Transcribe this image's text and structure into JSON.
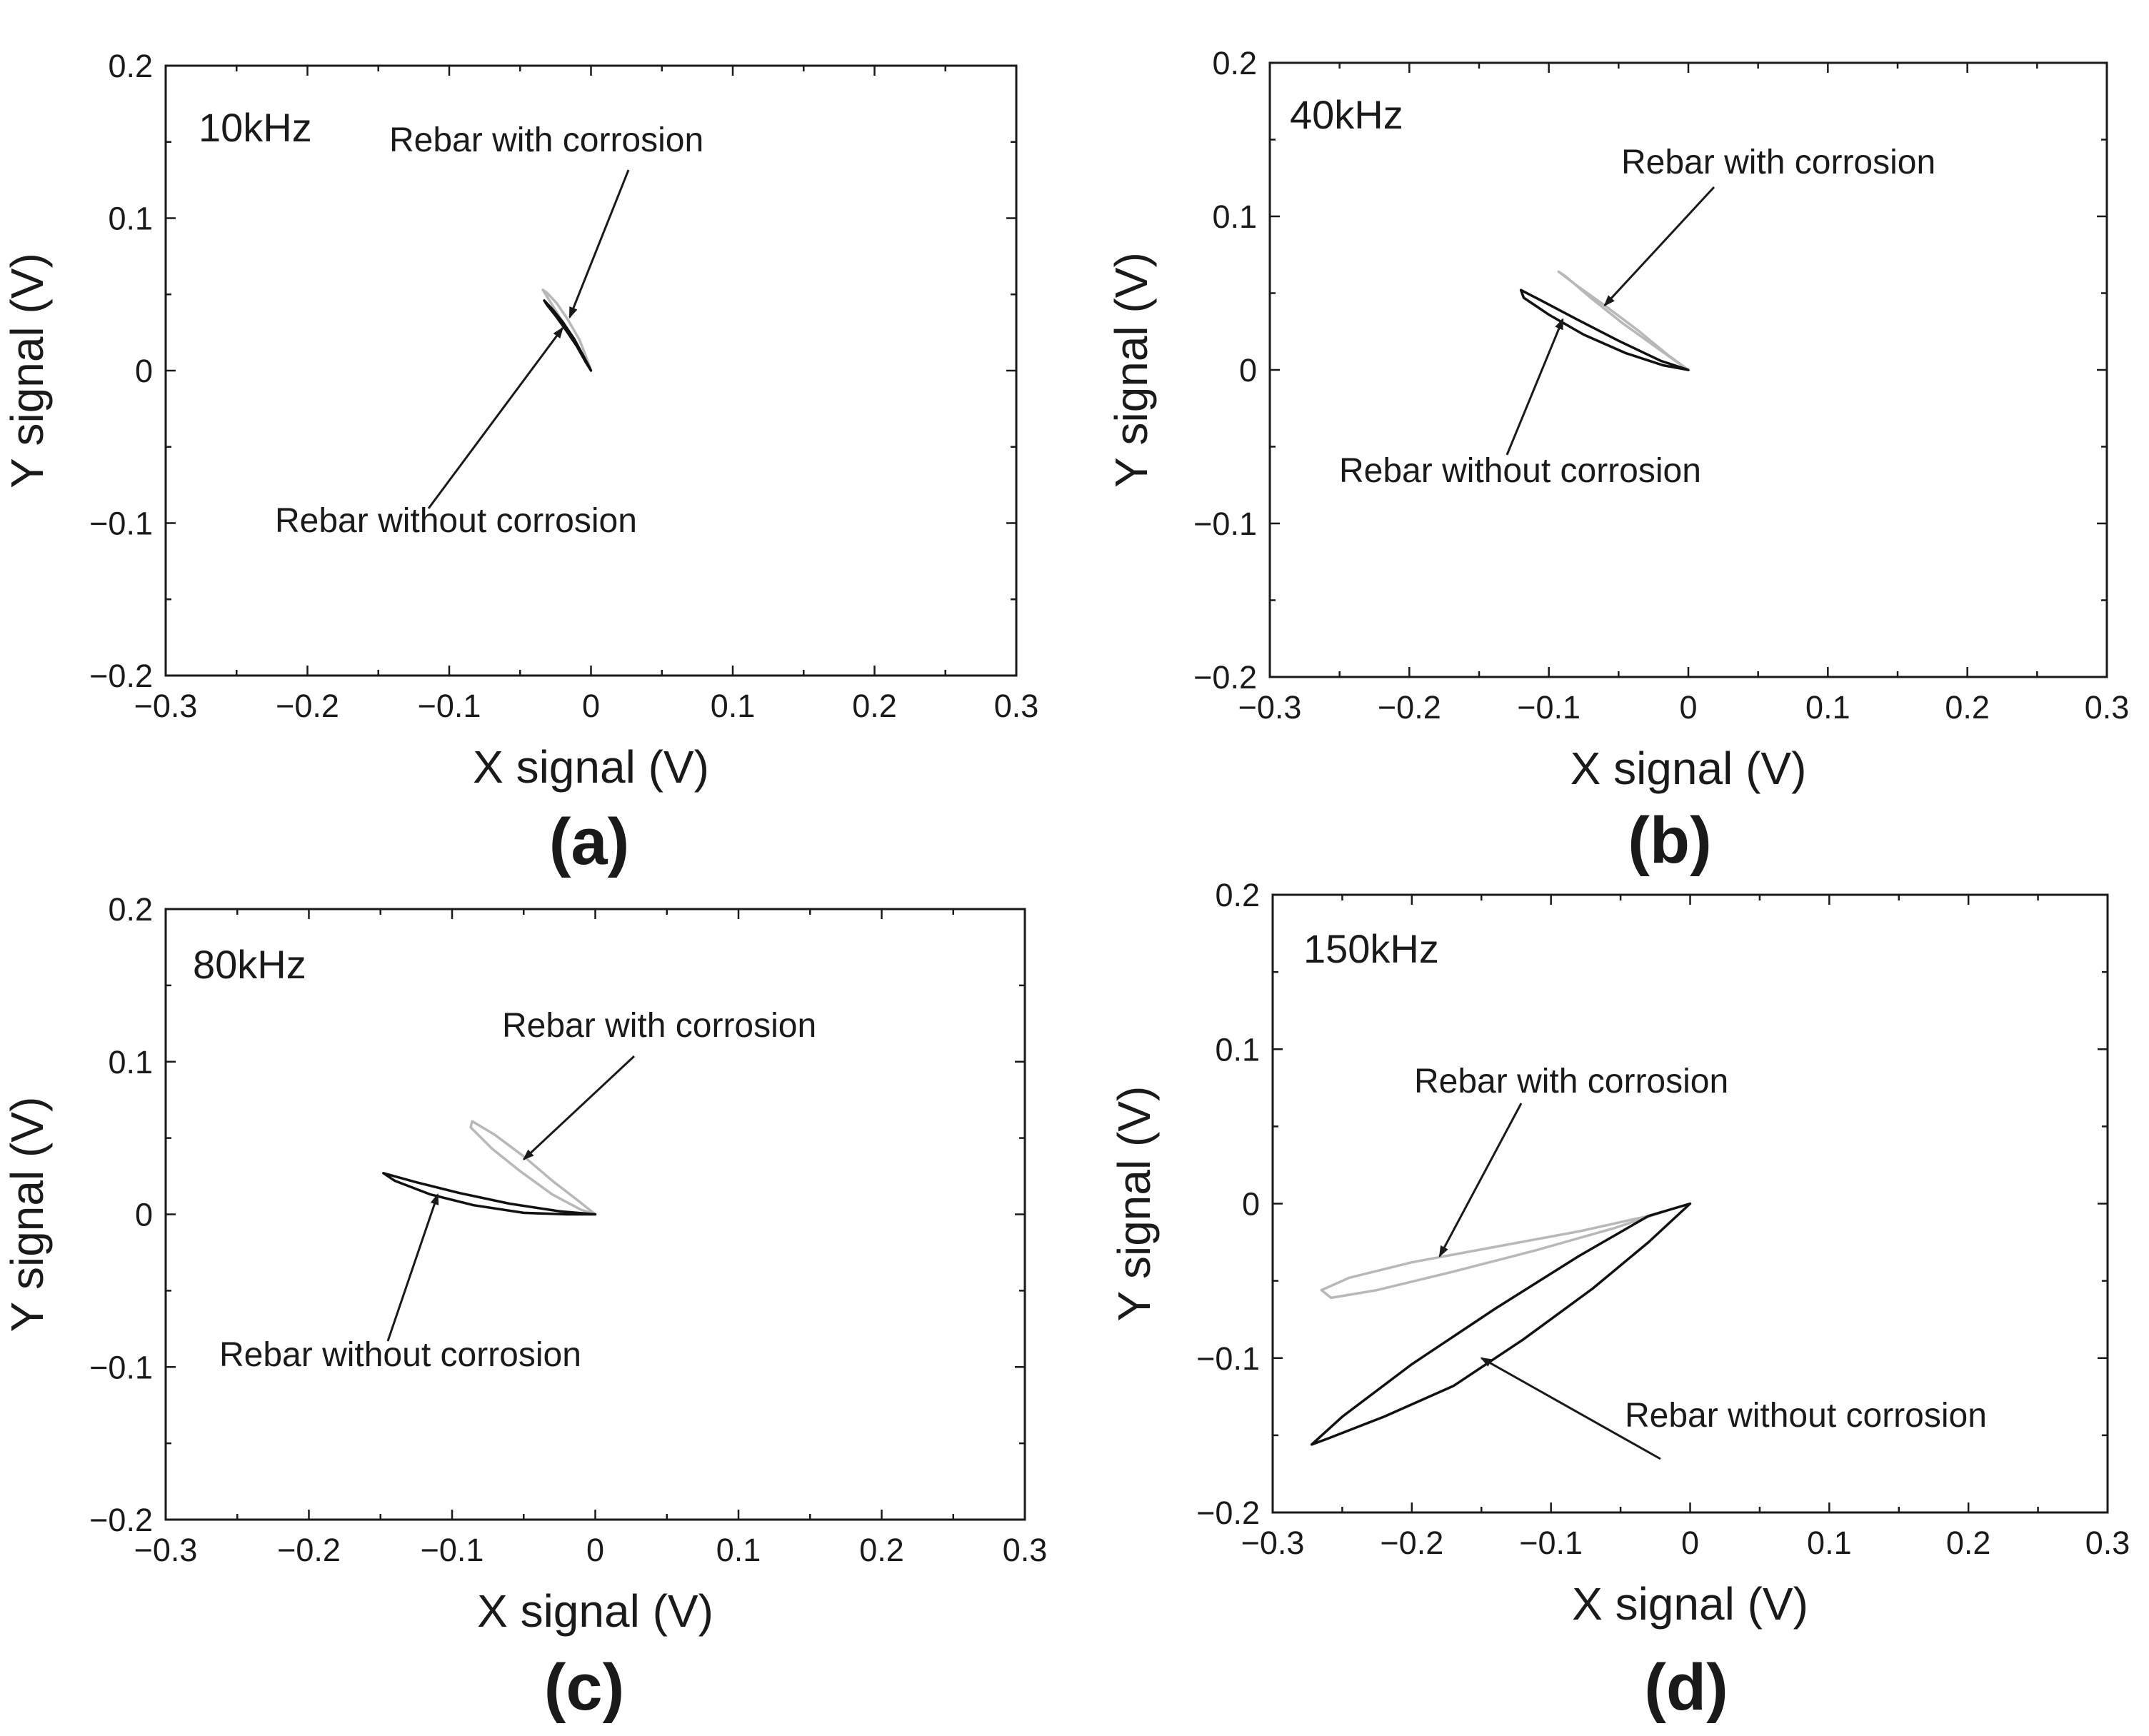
{
  "series_colors": {
    "Rebar with corrosion": "#b8b8b8",
    "Rebar without corrosion": "#111111"
  },
  "chart_data": [
    {
      "type": "line",
      "panel_letter": "(a)",
      "frequency_label": "10kHz",
      "xlabel": "X signal (V)",
      "ylabel": "Y signal (V)",
      "xlim": [
        -0.3,
        0.3
      ],
      "ylim": [
        -0.2,
        0.2
      ],
      "xticks": [
        "−0.3",
        "−0.2",
        "−0.1",
        "0",
        "0.1",
        "0.2",
        "0.3"
      ],
      "yticks": [
        "0.2",
        "0.1",
        "0",
        "−0.1",
        "−0.2"
      ],
      "grid": false,
      "series": [
        {
          "name": "Rebar with corrosion",
          "points": [
            [
              0,
              0
            ],
            [
              -0.003,
              0.008
            ],
            [
              -0.008,
              0.02
            ],
            [
              -0.016,
              0.033
            ],
            [
              -0.024,
              0.044
            ],
            [
              -0.031,
              0.051
            ],
            [
              -0.034,
              0.053
            ],
            [
              -0.03,
              0.047
            ],
            [
              -0.022,
              0.035
            ],
            [
              -0.013,
              0.022
            ],
            [
              -0.006,
              0.01
            ],
            [
              -0.002,
              0.003
            ],
            [
              0,
              0
            ]
          ]
        },
        {
          "name": "Rebar without corrosion",
          "points": [
            [
              0,
              0
            ],
            [
              -0.004,
              0.006
            ],
            [
              -0.01,
              0.016
            ],
            [
              -0.018,
              0.027
            ],
            [
              -0.025,
              0.036
            ],
            [
              -0.031,
              0.043
            ],
            [
              -0.033,
              0.046
            ],
            [
              -0.027,
              0.04
            ],
            [
              -0.02,
              0.032
            ],
            [
              -0.012,
              0.021
            ],
            [
              -0.005,
              0.009
            ],
            [
              -0.001,
              0.002
            ],
            [
              0,
              0
            ]
          ]
        }
      ],
      "annotations": [
        {
          "text": "Rebar with corrosion",
          "target": [
            -0.015,
            0.035
          ]
        },
        {
          "text": "Rebar without corrosion",
          "target": [
            -0.02,
            0.028
          ]
        }
      ]
    },
    {
      "type": "line",
      "panel_letter": "(b)",
      "frequency_label": "40kHz",
      "xlabel": "X signal (V)",
      "ylabel": "Y signal (V)",
      "xlim": [
        -0.3,
        0.3
      ],
      "ylim": [
        -0.2,
        0.2
      ],
      "xticks": [
        "−0.3",
        "−0.2",
        "−0.1",
        "0",
        "0.1",
        "0.2",
        "0.3"
      ],
      "yticks": [
        "0.2",
        "0.1",
        "0",
        "−0.1",
        "−0.2"
      ],
      "grid": false,
      "series": [
        {
          "name": "Rebar with corrosion",
          "points": [
            [
              0,
              0
            ],
            [
              -0.015,
              0.01
            ],
            [
              -0.035,
              0.025
            ],
            [
              -0.06,
              0.042
            ],
            [
              -0.08,
              0.055
            ],
            [
              -0.093,
              0.064
            ],
            [
              -0.088,
              0.061
            ],
            [
              -0.07,
              0.047
            ],
            [
              -0.048,
              0.031
            ],
            [
              -0.025,
              0.016
            ],
            [
              -0.008,
              0.005
            ],
            [
              0,
              0
            ]
          ]
        },
        {
          "name": "Rebar without corrosion",
          "points": [
            [
              0,
              0
            ],
            [
              -0.02,
              0.006
            ],
            [
              -0.05,
              0.019
            ],
            [
              -0.08,
              0.033
            ],
            [
              -0.105,
              0.045
            ],
            [
              -0.12,
              0.052
            ],
            [
              -0.118,
              0.047
            ],
            [
              -0.1,
              0.036
            ],
            [
              -0.075,
              0.023
            ],
            [
              -0.045,
              0.011
            ],
            [
              -0.018,
              0.003
            ],
            [
              0,
              0
            ]
          ]
        }
      ],
      "annotations": [
        {
          "text": "Rebar with corrosion",
          "target": [
            -0.06,
            0.042
          ]
        },
        {
          "text": "Rebar without corrosion",
          "target": [
            -0.09,
            0.033
          ]
        }
      ]
    },
    {
      "type": "line",
      "panel_letter": "(c)",
      "frequency_label": "80kHz",
      "xlabel": "X signal (V)",
      "ylabel": "Y signal (V)",
      "xlim": [
        -0.3,
        0.3
      ],
      "ylim": [
        -0.2,
        0.2
      ],
      "xticks": [
        "−0.3",
        "−0.2",
        "−0.1",
        "0",
        "0.1",
        "0.2",
        "0.3"
      ],
      "yticks": [
        "0.2",
        "0.1",
        "0",
        "−0.1",
        "−0.2"
      ],
      "grid": false,
      "series": [
        {
          "name": "Rebar with corrosion",
          "points": [
            [
              0,
              0
            ],
            [
              -0.012,
              0.009
            ],
            [
              -0.03,
              0.022
            ],
            [
              -0.05,
              0.038
            ],
            [
              -0.07,
              0.052
            ],
            [
              -0.086,
              0.061
            ],
            [
              -0.087,
              0.057
            ],
            [
              -0.072,
              0.043
            ],
            [
              -0.052,
              0.028
            ],
            [
              -0.03,
              0.013
            ],
            [
              -0.01,
              0.003
            ],
            [
              0,
              0
            ]
          ]
        },
        {
          "name": "Rebar without corrosion",
          "points": [
            [
              0,
              0
            ],
            [
              -0.025,
              0.002
            ],
            [
              -0.06,
              0.007
            ],
            [
              -0.095,
              0.014
            ],
            [
              -0.125,
              0.021
            ],
            [
              -0.148,
              0.027
            ],
            [
              -0.14,
              0.022
            ],
            [
              -0.115,
              0.013
            ],
            [
              -0.085,
              0.006
            ],
            [
              -0.05,
              0.001
            ],
            [
              -0.02,
              0
            ],
            [
              0,
              0
            ]
          ]
        }
      ],
      "annotations": [
        {
          "text": "Rebar with corrosion",
          "target": [
            -0.05,
            0.036
          ]
        },
        {
          "text": "Rebar without corrosion",
          "target": [
            -0.11,
            0.013
          ]
        }
      ]
    },
    {
      "type": "line",
      "panel_letter": "(d)",
      "frequency_label": "150kHz",
      "xlabel": "X signal (V)",
      "ylabel": "Y signal (V)",
      "xlim": [
        -0.3,
        0.3
      ],
      "ylim": [
        -0.2,
        0.2
      ],
      "xticks": [
        "−0.3",
        "−0.2",
        "−0.1",
        "0",
        "0.1",
        "0.2",
        "0.3"
      ],
      "yticks": [
        "0.2",
        "0.1",
        "0",
        "−0.1",
        "−0.2"
      ],
      "grid": false,
      "series": [
        {
          "name": "Rebar with corrosion",
          "points": [
            [
              0,
              0
            ],
            [
              -0.03,
              -0.008
            ],
            [
              -0.08,
              -0.018
            ],
            [
              -0.14,
              -0.028
            ],
            [
              -0.2,
              -0.038
            ],
            [
              -0.245,
              -0.048
            ],
            [
              -0.265,
              -0.056
            ],
            [
              -0.258,
              -0.061
            ],
            [
              -0.225,
              -0.056
            ],
            [
              -0.17,
              -0.044
            ],
            [
              -0.11,
              -0.03
            ],
            [
              -0.055,
              -0.016
            ],
            [
              -0.015,
              -0.004
            ],
            [
              0,
              0
            ]
          ]
        },
        {
          "name": "Rebar without corrosion",
          "points": [
            [
              0,
              0
            ],
            [
              -0.03,
              -0.025
            ],
            [
              -0.07,
              -0.055
            ],
            [
              -0.12,
              -0.088
            ],
            [
              -0.17,
              -0.118
            ],
            [
              -0.22,
              -0.138
            ],
            [
              -0.26,
              -0.152
            ],
            [
              -0.272,
              -0.156
            ],
            [
              -0.25,
              -0.138
            ],
            [
              -0.2,
              -0.104
            ],
            [
              -0.14,
              -0.068
            ],
            [
              -0.08,
              -0.034
            ],
            [
              -0.03,
              -0.008
            ],
            [
              0,
              0
            ]
          ]
        }
      ],
      "annotations": [
        {
          "text": "Rebar with corrosion",
          "target": [
            -0.18,
            -0.034
          ]
        },
        {
          "text": "Rebar without corrosion",
          "target": [
            -0.15,
            -0.1
          ]
        }
      ]
    }
  ]
}
